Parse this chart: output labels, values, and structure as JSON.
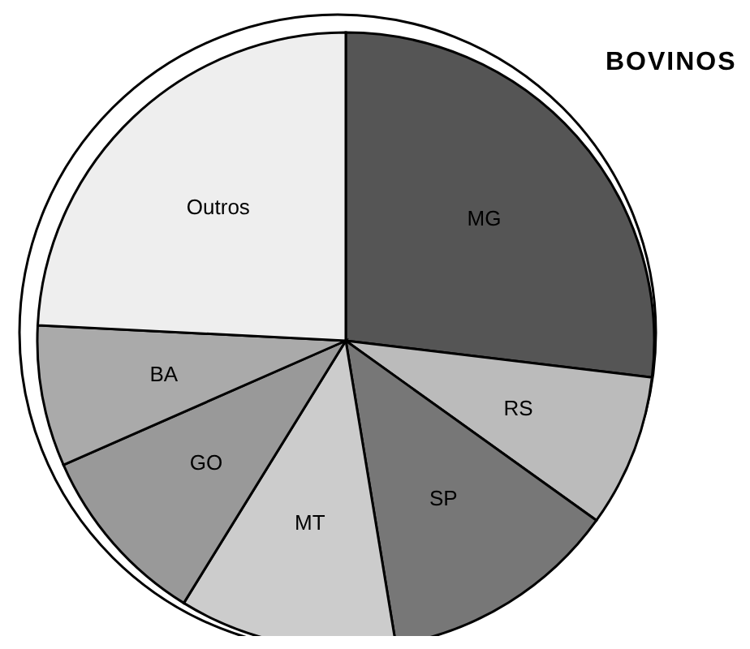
{
  "chart_data": {
    "type": "pie",
    "title": "BOVINOS",
    "categories": [
      "MG",
      "RS",
      "SP",
      "MT",
      "GO",
      "BA",
      "Outros"
    ],
    "values": [
      26.9,
      8,
      12.5,
      11.4,
      9.6,
      7.4,
      24.2
    ],
    "colors": [
      "#555555",
      "#bbbbbb",
      "#777777",
      "#cccccc",
      "#999999",
      "#aaaaaa",
      "#eeeeee"
    ]
  }
}
